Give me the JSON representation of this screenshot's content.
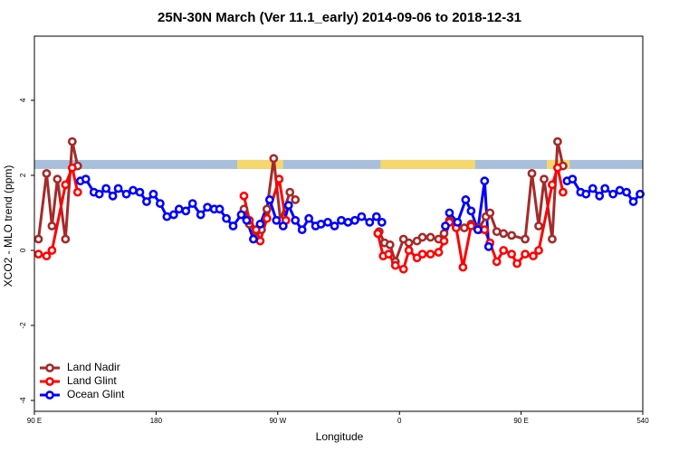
{
  "chart_data": {
    "type": "line",
    "title": "25N-30N March (Ver 11.1_early)   2014-09-06 to 2018-12-31",
    "x_label": "Longitude",
    "y_label": "XCO2 - MLO trend (ppm)",
    "xlim": [
      90,
      540
    ],
    "ylim": [
      -4.29,
      5.71
    ],
    "xticks": [
      {
        "value": 90,
        "label": "90 E"
      },
      180,
      {
        "value": 270,
        "label": "90 W"
      },
      {
        "value": 360,
        "label": "0"
      },
      {
        "value": 450,
        "label": "90 E"
      },
      540
    ],
    "yticks": [
      -4,
      -2,
      0,
      2,
      4
    ],
    "grid": false,
    "legend": "bottom-left",
    "band_ylim": [
      2.17,
      2.41
    ],
    "band_ocean_color": "#a8bfdc",
    "band_land_color": "#f5d76e",
    "land_ranges": [
      [
        240,
        274
      ],
      [
        346,
        416
      ],
      [
        469,
        486
      ]
    ],
    "series": [
      {
        "name": "Land Nadir",
        "color": "#a52a2a",
        "x": [
          93,
          99,
          103,
          107,
          113,
          118,
          122,
          200,
          245,
          249,
          254,
          258,
          262,
          267,
          272,
          279,
          283,
          320,
          345,
          349,
          353,
          357,
          363,
          367,
          373,
          377,
          383,
          389,
          393,
          397,
          402,
          408,
          413,
          419,
          424,
          427,
          432,
          437,
          443,
          453,
          458,
          463,
          467,
          473,
          477,
          481
        ],
        "values": [
          0.3,
          2.05,
          0.65,
          1.9,
          0.3,
          2.9,
          2.25,
          null,
          1.1,
          0.7,
          0.5,
          0.55,
          1.1,
          2.45,
          0.8,
          1.55,
          1.35,
          null,
          0.5,
          0.2,
          0.15,
          -0.3,
          0.3,
          0.2,
          0.25,
          0.35,
          0.35,
          0.3,
          0.45,
          0.8,
          0.65,
          0.6,
          0.7,
          0.6,
          0.9,
          1.0,
          0.5,
          0.45,
          0.4,
          0.3,
          2.05,
          0.65,
          1.9,
          0.3,
          2.9,
          2.25
        ]
      },
      {
        "name": "Land Glint",
        "color": "#ff0000",
        "x": [
          93,
          99,
          103,
          113,
          118,
          122,
          200,
          245,
          249,
          254,
          257,
          262,
          271,
          276,
          320,
          344,
          348,
          352,
          357,
          363,
          367,
          373,
          377,
          383,
          389,
          393,
          397,
          402,
          407,
          413,
          419,
          423,
          427,
          432,
          437,
          443,
          447,
          453,
          459,
          463,
          473,
          477,
          481
        ],
        "values": [
          -0.1,
          -0.15,
          0,
          1.75,
          2.2,
          1.55,
          null,
          1.45,
          0.8,
          0.55,
          0.25,
          0.85,
          1.9,
          0.8,
          null,
          0.45,
          -0.15,
          -0.1,
          -0.4,
          -0.5,
          0,
          -0.2,
          -0.1,
          -0.1,
          -0.05,
          0.25,
          0.75,
          0.6,
          -0.45,
          0.65,
          0.55,
          0.55,
          0.2,
          -0.3,
          0,
          -0.1,
          -0.35,
          -0.1,
          -0.15,
          0,
          1.75,
          2.2,
          1.55
        ]
      },
      {
        "name": "Ocean Glint",
        "color": "#0000ff",
        "x": [
          124,
          128,
          134,
          138,
          143,
          148,
          152,
          158,
          163,
          168,
          173,
          178,
          183,
          188,
          193,
          197,
          202,
          207,
          213,
          218,
          223,
          227,
          232,
          237,
          243,
          247,
          252,
          257,
          264,
          269,
          274,
          278,
          283,
          288,
          293,
          298,
          302,
          307,
          312,
          317,
          322,
          327,
          332,
          338,
          343,
          347,
          370,
          394,
          397,
          403,
          409,
          413,
          418,
          423,
          426,
          455,
          484,
          488,
          494,
          498,
          503,
          508,
          512,
          518,
          523,
          528,
          533,
          538
        ],
        "values": [
          1.85,
          1.9,
          1.55,
          1.5,
          1.65,
          1.45,
          1.65,
          1.5,
          1.6,
          1.55,
          1.3,
          1.5,
          1.25,
          0.9,
          0.95,
          1.1,
          1.05,
          1.25,
          0.95,
          1.15,
          1.1,
          1.1,
          0.85,
          0.65,
          0.95,
          0.8,
          0.3,
          0.7,
          1.35,
          0.8,
          0.65,
          1.2,
          0.8,
          0.55,
          0.85,
          0.65,
          0.7,
          0.75,
          0.65,
          0.8,
          0.75,
          0.8,
          0.9,
          0.75,
          0.9,
          0.75,
          null,
          0.65,
          1.0,
          0.75,
          1.35,
          1.05,
          0.55,
          1.85,
          0.1,
          null,
          1.85,
          1.9,
          1.55,
          1.5,
          1.65,
          1.45,
          1.65,
          1.5,
          1.6,
          1.55,
          1.3,
          1.5
        ]
      }
    ]
  }
}
